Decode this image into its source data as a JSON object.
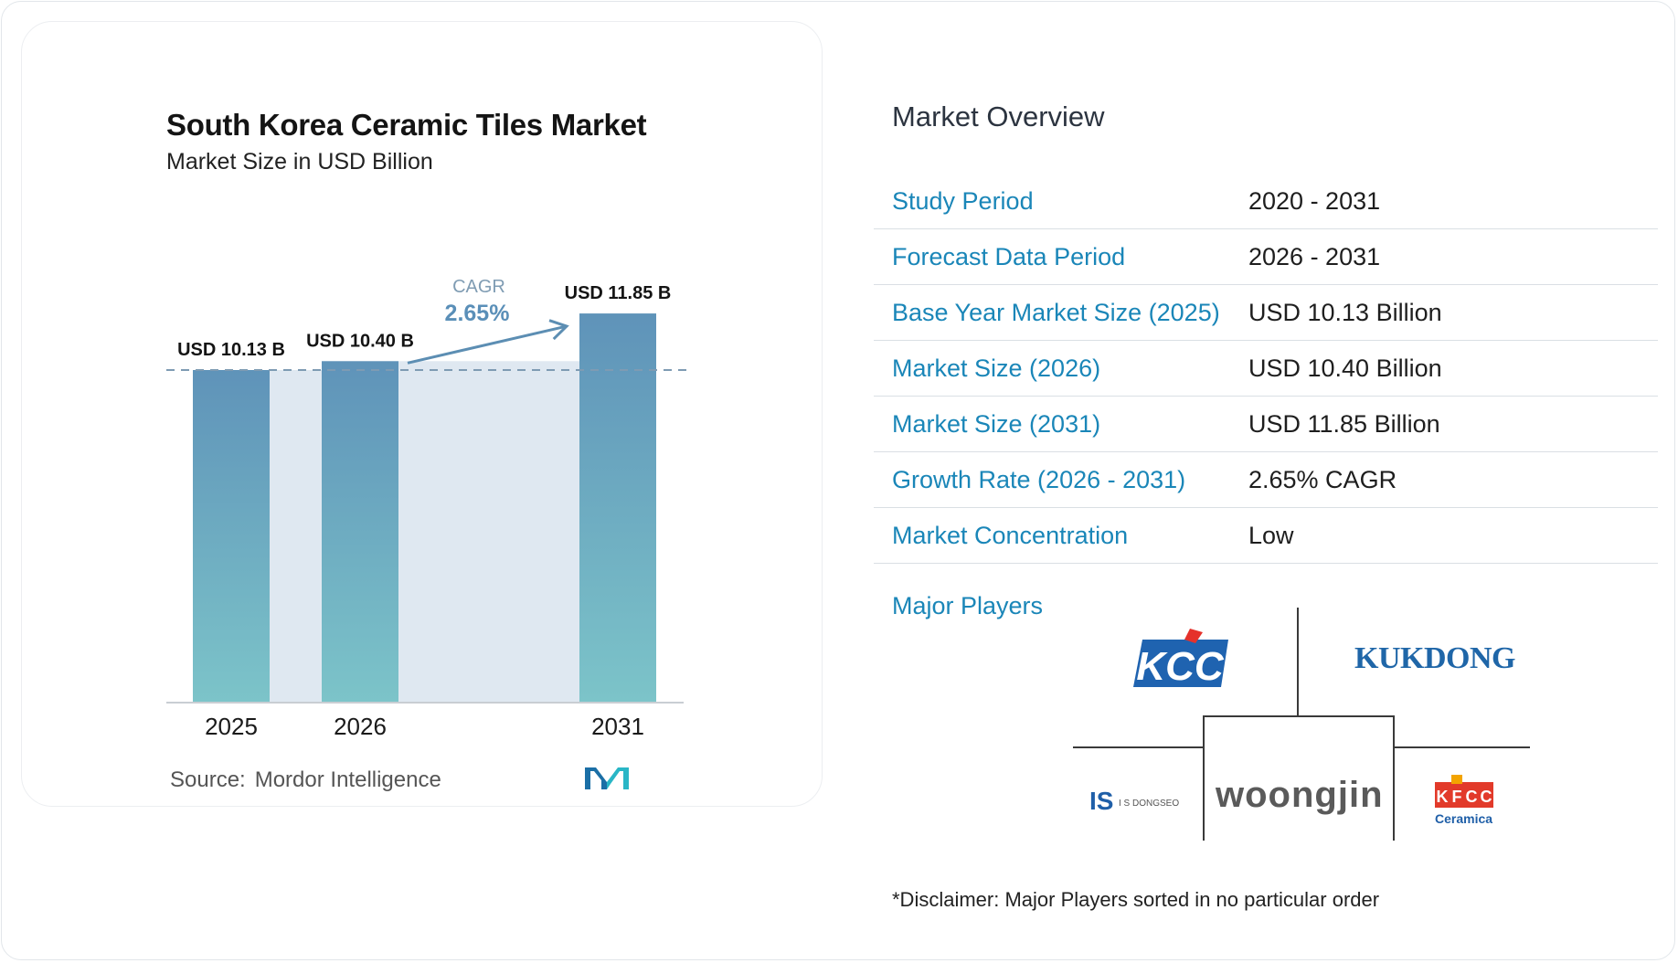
{
  "chart_data": {
    "type": "bar",
    "title": "South Korea Ceramic Tiles Market",
    "subtitle": "Market Size in USD Billion",
    "categories": [
      "2025",
      "2026",
      "2031"
    ],
    "values": [
      10.13,
      10.4,
      11.85
    ],
    "data_labels": [
      "USD 10.13 B",
      "USD 10.40 B",
      "USD 11.85 B"
    ],
    "annotation": {
      "label": "CAGR",
      "value": "2.65%"
    },
    "grid": false,
    "colors": {
      "bar_top": "#5f93b9",
      "bar_bottom": "#7cc4c9",
      "band": "#dfe8f1",
      "arrow": "#5c8eb3",
      "cagr_label": "#7f9cb3",
      "cagr_value": "#5a8fb8",
      "dashed": "#7e9bb3"
    }
  },
  "source": {
    "label": "Source:",
    "value": "Mordor Intelligence"
  },
  "overview": {
    "title": "Market Overview",
    "rows": [
      {
        "label": "Study Period",
        "value": "2020 - 2031"
      },
      {
        "label": "Forecast Data Period",
        "value": "2026 - 2031"
      },
      {
        "label": "Base Year Market Size (2025)",
        "value": "USD 10.13 Billion"
      },
      {
        "label": "Market Size (2026)",
        "value": "USD 10.40 Billion"
      },
      {
        "label": "Market Size (2031)",
        "value": "USD 11.85 Billion"
      },
      {
        "label": "Growth Rate (2026 - 2031)",
        "value": "2.65% CAGR"
      },
      {
        "label": "Market Concentration",
        "value": "Low"
      }
    ]
  },
  "players": {
    "label": "Major Players",
    "logos": {
      "kcc": "KCC",
      "kukdong": "KUKDONG",
      "dongseo_mark": "IS",
      "dongseo_text": "I S DONGSEO",
      "woongjin": "woongjin",
      "kfcc_letters": [
        "K",
        "F",
        "C",
        "C"
      ],
      "kfcc_sub": "Ceramica"
    }
  },
  "disclaimer": "*Disclaimer: Major Players sorted in no particular order"
}
